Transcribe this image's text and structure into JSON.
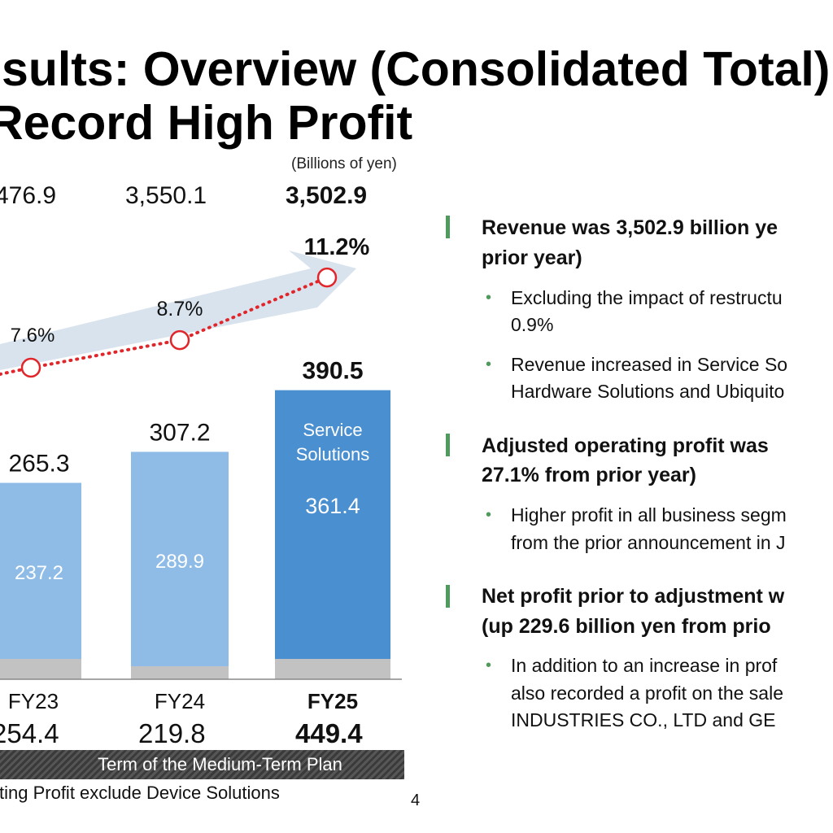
{
  "slide": {
    "title_line1": "sults: Overview (Consolidated Total)",
    "title_line2": "Record High Profit",
    "unit": "(Billions of yen)",
    "page_number": "4",
    "term_label": "Term of the Medium-Term Plan",
    "footnote": "ting Profit exclude Device Solutions"
  },
  "revenue_row": [
    "476.9",
    "3,550.1",
    "3,502.9"
  ],
  "net_profit_row": [
    "254.4",
    "219.8",
    "449.4"
  ],
  "chart_data": {
    "type": "bar",
    "categories": [
      "FY23",
      "FY24",
      "FY25"
    ],
    "series": [
      {
        "values": [
          265.3,
          307.2,
          390.5
        ]
      },
      {
        "name": "Service Solutions",
        "values": [
          237.2,
          289.9,
          361.4
        ]
      }
    ],
    "margin_line": {
      "values": [
        7.6,
        8.7,
        11.2
      ],
      "labels": [
        "7.6%",
        "8.7%",
        "11.2%"
      ]
    },
    "total_labels": [
      "265.3",
      "307.2",
      "390.5"
    ],
    "segment_labels": [
      "237.2",
      "289.9",
      "361.4"
    ],
    "segment_name_lines": [
      "Service",
      "Solutions"
    ],
    "colors": {
      "bar_light": "#8fbce6",
      "bar_highlight": "#4a8fd0",
      "base_segment": "#c2c2c2",
      "margin_dots": "#e0262a",
      "arrow": "#d9e3ee"
    }
  },
  "bullets": [
    {
      "heading": [
        "Revenue was 3,502.9 billion ye",
        "prior year)"
      ],
      "points": [
        [
          "Excluding the impact of restructu",
          "0.9%"
        ],
        [
          "Revenue increased in Service So",
          "Hardware Solutions and Ubiquito"
        ]
      ]
    },
    {
      "heading": [
        "Adjusted operating profit was",
        "27.1% from prior year)"
      ],
      "points": [
        [
          "Higher profit in all business segm",
          "from the prior announcement in J"
        ]
      ]
    },
    {
      "heading": [
        "Net profit prior to adjustment w",
        "(up 229.6 billion yen from prio"
      ],
      "points": [
        [
          "In addition to an increase in prof",
          "also recorded a profit on the sale",
          "INDUSTRIES CO., LTD and GE"
        ]
      ]
    }
  ]
}
